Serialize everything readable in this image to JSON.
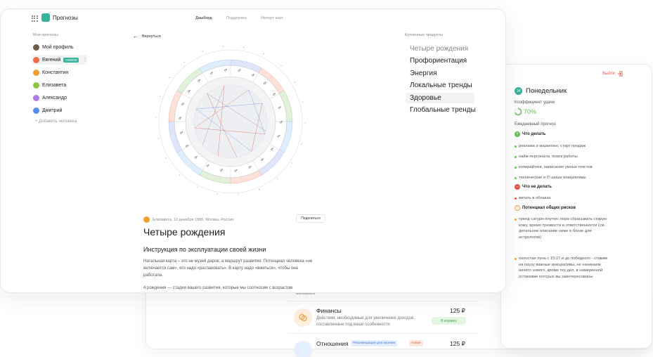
{
  "app": {
    "title": "Прогнозы"
  },
  "nav": {
    "tabs": [
      "Дашборд",
      "Поддержка",
      "Импорт карт"
    ]
  },
  "sidebar": {
    "heading": "Мои прогнозы",
    "items": [
      {
        "label": "Мой профиль",
        "color": "#6b5b4a"
      },
      {
        "label": "Евгений",
        "badge": "НОВОЕ",
        "color": "#f06a4a"
      },
      {
        "label": "Константин",
        "color": "#f0a030"
      },
      {
        "label": "Елизавета",
        "color": "#8dc63f"
      },
      {
        "label": "Александр",
        "color": "#b37be0"
      },
      {
        "label": "Дмитрий",
        "color": "#5b8def"
      }
    ],
    "add_label": "Добавить человека"
  },
  "chart_area": {
    "back_label": "Вернуться",
    "meta": "Елизавета, 12 декабря 1986, Москва, Россия",
    "share_label": "Поделиться",
    "title": "Четыре рождения",
    "subtitle": "Инструкция по эксплуатации своей жизни",
    "paragraph1": "Натальная карта – это не музей даров, а маршрут развития. Потенциал человека «не включается сам», его надо «распаковать». В карту надо «вжиться», чтобы она работала.",
    "paragraph2": "4 рождения — стадии вашего развития, которые мы соотносим с возрастом"
  },
  "products": {
    "heading": "Купленные продукты",
    "items": [
      "Четыре рождения",
      "Профориентация",
      "Энергия",
      "Локальные тренды",
      "Здоровье",
      "Глобальные тренды"
    ]
  },
  "forecast": {
    "logout_label": "Выйти",
    "day_number": "14",
    "day_name": "Понедельник",
    "luck_label": "Коэффициент удачи",
    "luck_value": "70%",
    "luck_fraction": 0.7,
    "daily_label": "Ежедневный прогноз",
    "do_heading": "Что делать",
    "do_items": [
      "реклама и маркетинг, старт продаж",
      "найм персонала, поиск работы",
      "копирайтинг, написание умных текстов",
      "технические и IT-шные инициативы"
    ],
    "dont_heading": "Что не делать",
    "dont_items": [
      "витать в облаках"
    ],
    "risk_heading": "Потенциал общих рисков",
    "risk_items": [
      "тренд сатурн-плутон: пора сбрасывать старую кожу, время трезвости и ответственности (см. детальное описание ниже в блоке для астрологов)",
      "холостая луна с 15:27 и до победного - ставим на паузу важные инициативы, не начинаем ничего нового, кроме тех дел, в намеренной остановке которых вы заинтересованы"
    ]
  },
  "shop": {
    "top_text": "внимания",
    "item1": {
      "title": "Финансы",
      "desc": "Действия, необходимые для увеличения доходов, составленные под ваши особенности",
      "price": "125 ₽",
      "cart_label": "В корзину"
    },
    "item2": {
      "title": "Отношения",
      "tag1": "Рекомендации для мужчин",
      "tag2": "Новое",
      "price": "125 ₽"
    }
  },
  "colors": {
    "accent": "#36b39a",
    "red": "#e05a4a",
    "green": "#6bbf59",
    "orange": "#f0a040"
  }
}
